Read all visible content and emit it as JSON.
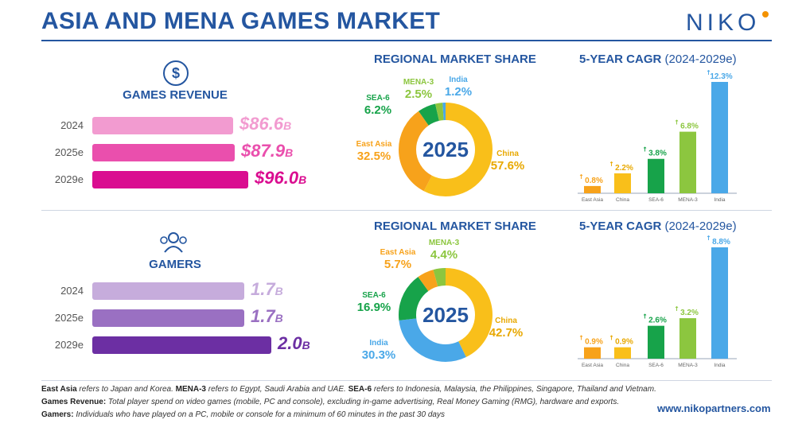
{
  "header": {
    "title": "ASIA AND MENA GAMES MARKET",
    "logo_text": "NIKO"
  },
  "revenue": {
    "label": "GAMES REVENUE",
    "icon_glyph": "$",
    "icon": "dollar-icon",
    "bars": [
      {
        "year": "2024",
        "value": 86.6,
        "display": "$86.6",
        "unit": "B",
        "color": "#f29bd0"
      },
      {
        "year": "2025e",
        "value": 87.9,
        "display": "$87.9",
        "unit": "B",
        "color": "#ea4fad"
      },
      {
        "year": "2029e",
        "value": 96.0,
        "display": "$96.0",
        "unit": "B",
        "color": "#da0d90"
      }
    ],
    "share_title": "REGIONAL MARKET SHARE",
    "donut_center": "2025",
    "cagr_title": "5-YEAR CAGR",
    "cagr_sub": "(2024-2029e)"
  },
  "gamers": {
    "label": "GAMERS",
    "icon": "users-icon",
    "bars": [
      {
        "year": "2024",
        "value": 1.7,
        "display": "1.7",
        "unit": "B",
        "color": "#c6acdc"
      },
      {
        "year": "2025e",
        "value": 1.7,
        "display": "1.7",
        "unit": "B",
        "color": "#9a70c2"
      },
      {
        "year": "2029e",
        "value": 2.0,
        "display": "2.0",
        "unit": "B",
        "color": "#6c2fa3"
      }
    ],
    "share_title": "REGIONAL MARKET SHARE",
    "donut_center": "2025",
    "cagr_title": "5-YEAR CAGR",
    "cagr_sub": "(2024-2029e)"
  },
  "chart_data": [
    {
      "type": "bar",
      "title": "GAMES REVENUE",
      "categories": [
        "2024",
        "2025e",
        "2029e"
      ],
      "values": [
        86.6,
        87.9,
        96.0
      ],
      "unit": "$B"
    },
    {
      "type": "pie",
      "title": "REGIONAL MARKET SHARE",
      "center_label": "2025",
      "slices": [
        {
          "label": "China",
          "value": 57.6,
          "color": "#f9bf1a"
        },
        {
          "label": "East Asia",
          "value": 32.5,
          "color": "#f7a21b"
        },
        {
          "label": "SEA-6",
          "value": 6.2,
          "color": "#17a34a"
        },
        {
          "label": "MENA-3",
          "value": 2.5,
          "color": "#8cc63f"
        },
        {
          "label": "India",
          "value": 1.2,
          "color": "#4aa8e8"
        }
      ]
    },
    {
      "type": "bar",
      "title": "5-YEAR CAGR (2024-2029e)",
      "categories": [
        "East Asia",
        "China",
        "SEA-6",
        "MENA-3",
        "India"
      ],
      "values": [
        0.8,
        2.2,
        3.8,
        6.8,
        12.3
      ],
      "labels": [
        "0.8%",
        "2.2%",
        "3.8%",
        "6.8%",
        "12.3%"
      ],
      "colors": [
        "#f7a21b",
        "#f9bf1a",
        "#17a34a",
        "#8cc63f",
        "#4aa8e8"
      ],
      "unit": "%"
    },
    {
      "type": "bar",
      "title": "GAMERS",
      "categories": [
        "2024",
        "2025e",
        "2029e"
      ],
      "values": [
        1.7,
        1.7,
        2.0
      ],
      "unit": "B"
    },
    {
      "type": "pie",
      "title": "REGIONAL MARKET SHARE",
      "center_label": "2025",
      "slices": [
        {
          "label": "China",
          "value": 42.7,
          "color": "#f9bf1a"
        },
        {
          "label": "India",
          "value": 30.3,
          "color": "#4aa8e8"
        },
        {
          "label": "SEA-6",
          "value": 16.9,
          "color": "#17a34a"
        },
        {
          "label": "East Asia",
          "value": 5.7,
          "color": "#f7a21b"
        },
        {
          "label": "MENA-3",
          "value": 4.4,
          "color": "#8cc63f"
        }
      ]
    },
    {
      "type": "bar",
      "title": "5-YEAR CAGR (2024-2029e)",
      "categories": [
        "East Asia",
        "China",
        "SEA-6",
        "MENA-3",
        "India"
      ],
      "values": [
        0.9,
        0.9,
        2.6,
        3.2,
        8.8
      ],
      "labels": [
        "0.9%",
        "0.9%",
        "2.6%",
        "3.2%",
        "8.8%"
      ],
      "colors": [
        "#f7a21b",
        "#f9bf1a",
        "#17a34a",
        "#8cc63f",
        "#4aa8e8"
      ],
      "unit": "%"
    }
  ],
  "footer": {
    "east_asia_term": "East Asia",
    "east_asia_text": " refers to Japan and Korea. ",
    "mena_term": "MENA-3",
    "mena_text": " refers to Egypt, Saudi Arabia and UAE. ",
    "sea_term": "SEA-6",
    "sea_text": " refers to Indonesia, Malaysia, the Philippines, Singapore, Thailand and Vietnam.",
    "revenue_term": "Games Revenue:",
    "revenue_text": " Total player spend on video games (mobile, PC and console), excluding in-game advertising, Real Money Gaming (RMG), hardware and exports.",
    "gamers_term": "Gamers:",
    "gamers_text": " Individuals who have played on a PC, mobile or console for a minimum of 60 minutes in the past 30 days",
    "url": "www.nikopartners.com"
  }
}
